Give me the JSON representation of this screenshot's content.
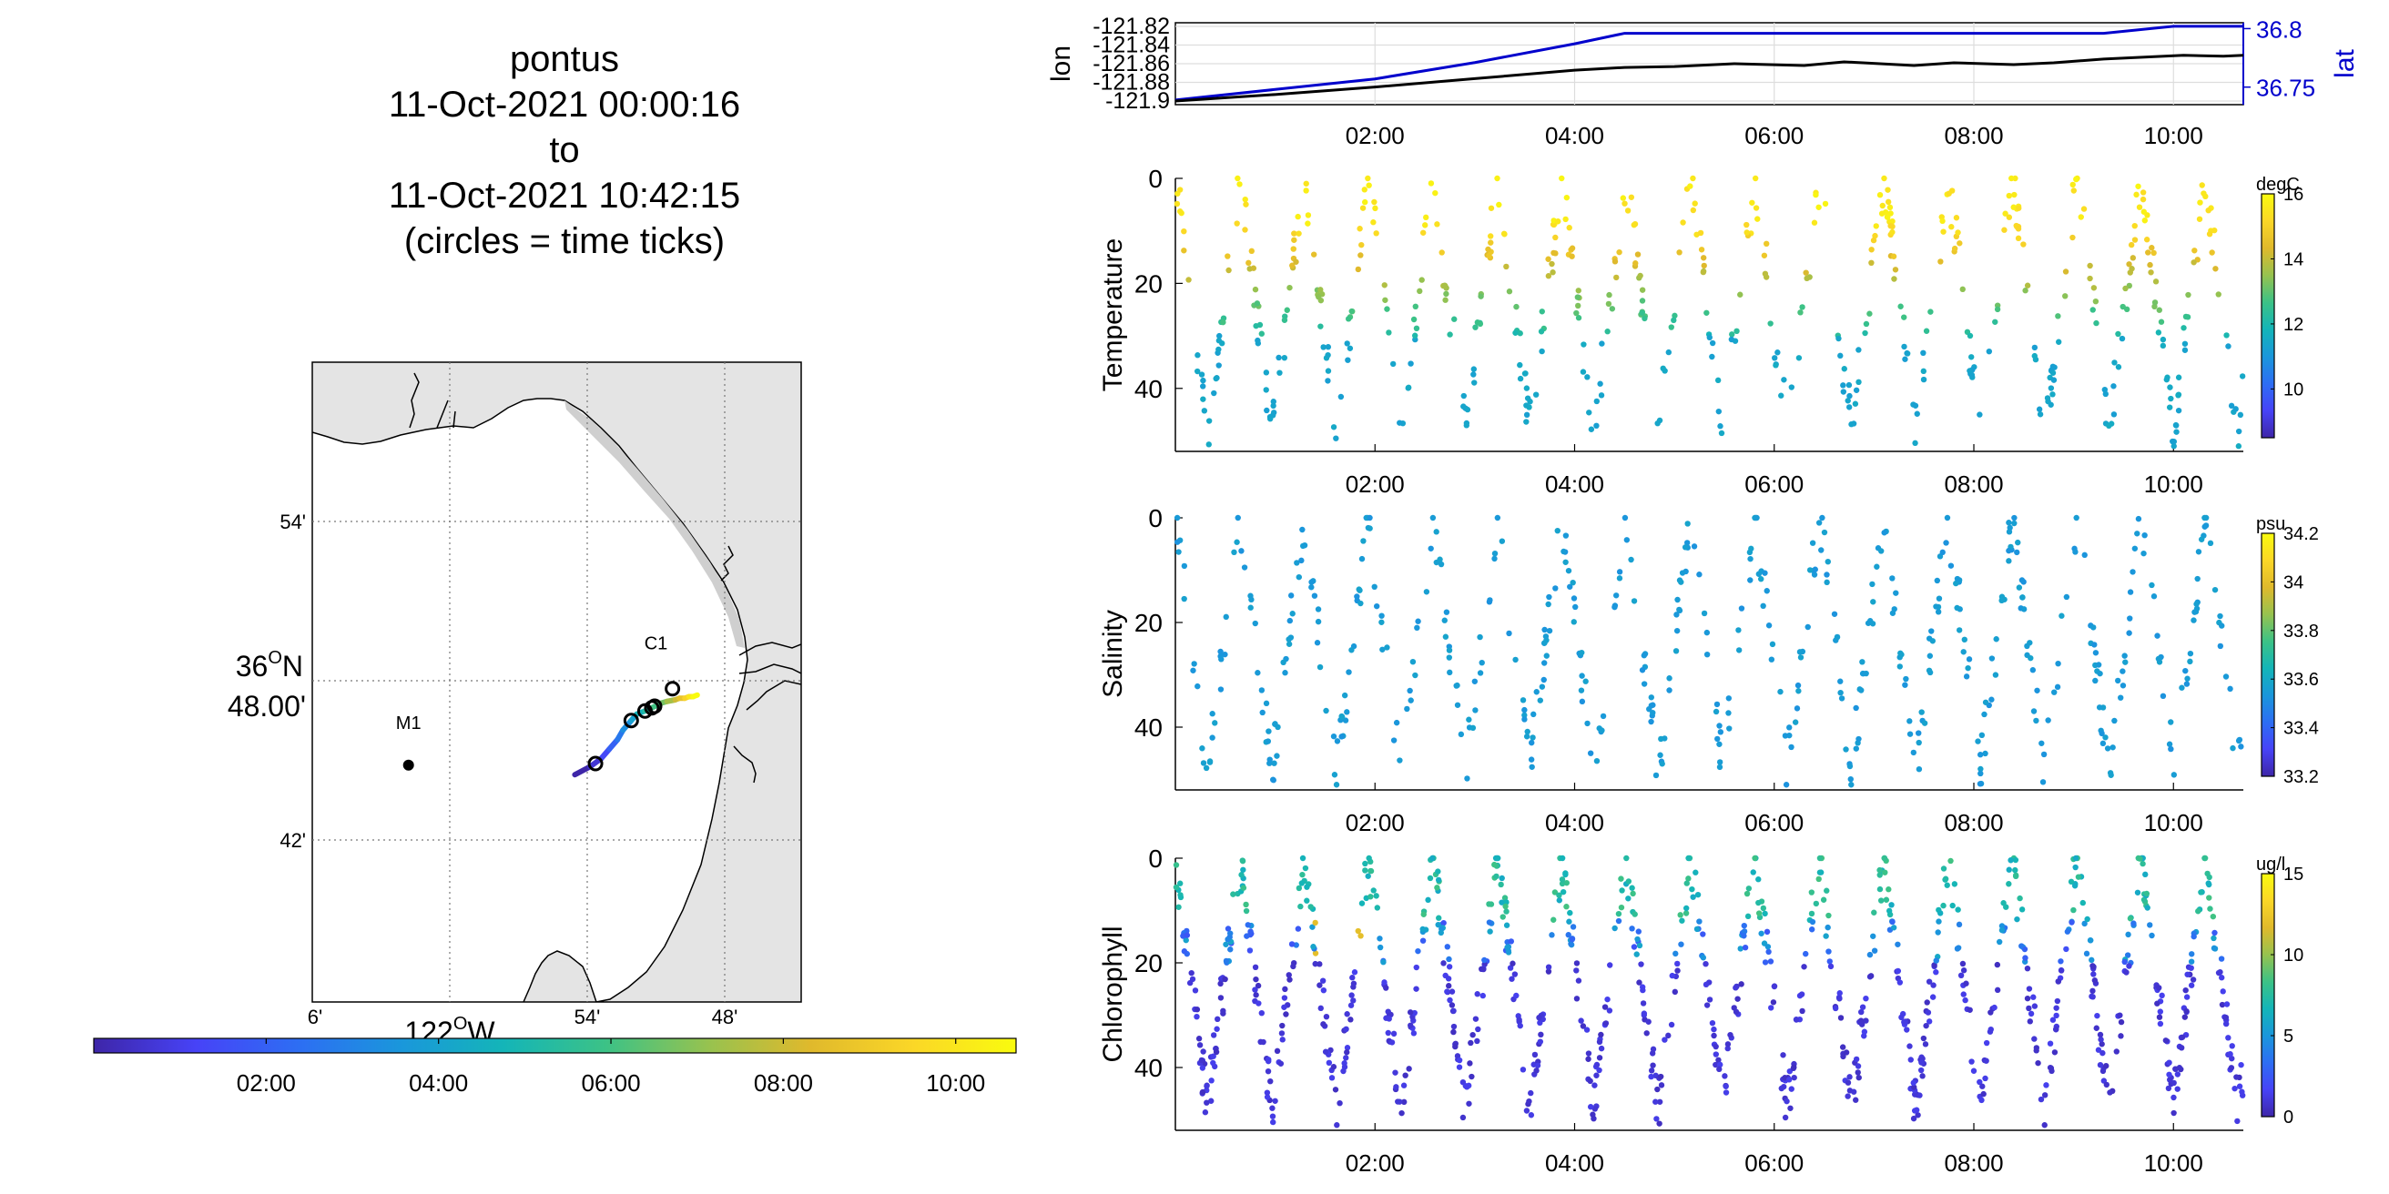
{
  "title": {
    "vehicle": "pontus",
    "start": "11-Oct-2021 00:00:16",
    "to_word": "to",
    "end": "11-Oct-2021 10:42:15",
    "note": "(circles = time ticks)"
  },
  "map": {
    "lat_ticks": [
      "54'",
      "42'"
    ],
    "lat_center_deg": "36",
    "lat_center_deg_sup": "O",
    "lat_center_hem": "N",
    "lat_center_min": "48.00'",
    "lon_ticks": [
      "6'",
      "54'",
      "48'"
    ],
    "lon_center_deg": "122",
    "lon_center_deg_sup": "O",
    "lon_center_hem": "W",
    "stations": [
      {
        "label": "M1",
        "lon": -122.03,
        "lat": 36.747
      },
      {
        "label": "C1",
        "lon": -121.85,
        "lat": 36.797
      }
    ],
    "track": {
      "lon": [
        -121.909,
        -121.898,
        -121.89,
        -121.884,
        -121.878,
        -121.874,
        -121.868,
        -121.864,
        -121.858,
        -121.853,
        -121.846,
        -121.842,
        -121.836,
        -121.833,
        -121.829,
        -121.826,
        -121.823,
        -121.82
      ],
      "lat": [
        36.741,
        36.746,
        36.751,
        36.757,
        36.763,
        36.769,
        36.775,
        36.779,
        36.781,
        36.783,
        36.786,
        36.787,
        36.788,
        36.789,
        36.789,
        36.79,
        36.79,
        36.791
      ]
    },
    "tick_circles": [
      {
        "lon": -121.894,
        "lat": 36.748
      },
      {
        "lon": -121.868,
        "lat": 36.775
      },
      {
        "lon": -121.858,
        "lat": 36.781
      },
      {
        "lon": -121.853,
        "lat": 36.783
      },
      {
        "lon": -121.851,
        "lat": 36.784
      },
      {
        "lon": -121.838,
        "lat": 36.795
      }
    ],
    "colorbar_ticks": [
      "02:00",
      "04:00",
      "06:00",
      "08:00",
      "10:00"
    ]
  },
  "chart_data": [
    {
      "type": "line",
      "panel": "position",
      "x_unit": "hours after 11-Oct-2021 00:00",
      "x_ticks": [
        "02:00",
        "04:00",
        "06:00",
        "08:00",
        "10:00"
      ],
      "xlim": [
        0,
        10.7
      ],
      "ylabel": "lon",
      "ylabel2": "lat",
      "y_ticks": [
        "-121.82",
        "-121.84",
        "-121.86",
        "-121.88",
        "-121.9"
      ],
      "y2_ticks": [
        "36.8",
        "36.75"
      ],
      "ylim": [
        -121.9,
        -121.82
      ],
      "y2lim": [
        36.735,
        36.805
      ],
      "series": [
        {
          "name": "lon",
          "color": "#000000",
          "x": [
            0,
            1,
            2,
            3,
            4,
            4.5,
            5,
            5.6,
            6.3,
            6.7,
            7.4,
            7.8,
            8.4,
            8.8,
            9.3,
            10.1,
            10.5,
            10.7
          ],
          "y": [
            -121.9,
            -121.893,
            -121.885,
            -121.876,
            -121.867,
            -121.864,
            -121.863,
            -121.86,
            -121.862,
            -121.858,
            -121.862,
            -121.859,
            -121.861,
            -121.859,
            -121.855,
            -121.851,
            -121.852,
            -121.851
          ]
        },
        {
          "name": "lat",
          "color": "#0000cc",
          "x": [
            0,
            1,
            2,
            3,
            4,
            4.5,
            6,
            8,
            9.3,
            10,
            10.7
          ],
          "y": [
            36.739,
            36.748,
            36.757,
            36.771,
            36.787,
            36.796,
            36.796,
            36.796,
            36.796,
            36.802,
            36.802
          ]
        }
      ]
    },
    {
      "type": "scatter",
      "panel": "temperature",
      "ylabel": "Temperature",
      "unit": "degC",
      "y_ticks": [
        "0",
        "20",
        "40"
      ],
      "ylim": [
        0,
        52
      ],
      "x_ticks": [
        "02:00",
        "04:00",
        "06:00",
        "08:00",
        "10:00"
      ],
      "xlim": [
        0,
        10.7
      ],
      "clim": [
        8.5,
        16
      ],
      "cbar_ticks": [
        "16",
        "14",
        "12",
        "10"
      ],
      "note": "point cloud: yo-yo profiles 0-50 m, warm (~15.5 degC) near surface, cool (~11 degC) at depth"
    },
    {
      "type": "scatter",
      "panel": "salinity",
      "ylabel": "Salinity",
      "unit": "psu",
      "y_ticks": [
        "0",
        "20",
        "40"
      ],
      "ylim": [
        0,
        52
      ],
      "x_ticks": [
        "02:00",
        "04:00",
        "06:00",
        "08:00",
        "10:00"
      ],
      "xlim": [
        0,
        10.7
      ],
      "clim": [
        33.2,
        34.2
      ],
      "cbar_ticks": [
        "34.2",
        "34",
        "33.8",
        "33.6",
        "33.4",
        "33.2"
      ],
      "note": "point cloud: nearly uniform ~33.55 psu"
    },
    {
      "type": "scatter",
      "panel": "chlorophyll",
      "ylabel": "Chlorophyll",
      "unit": "ug/l",
      "y_ticks": [
        "0",
        "20",
        "40"
      ],
      "ylim": [
        0,
        52
      ],
      "x_ticks": [
        "02:00",
        "04:00",
        "06:00",
        "08:00",
        "10:00"
      ],
      "xlim": [
        0,
        10.7
      ],
      "clim": [
        0,
        15
      ],
      "cbar_ticks": [
        "15",
        "10",
        "5",
        "0"
      ],
      "note": "point cloud: ~6-8 ug/l above 15 m, ~1 ug/l below 20 m, patch ~12 ug/l near 01:40 at 15 m"
    }
  ],
  "colors": {
    "land": "#e4e4e4",
    "lat_axis": "#0000cc",
    "parula": [
      "#3e26a8",
      "#4743f7",
      "#2d6ef3",
      "#1a97db",
      "#14b5b8",
      "#3cc286",
      "#97c24f",
      "#e0b92c",
      "#fbd727",
      "#f9fb0e"
    ]
  }
}
